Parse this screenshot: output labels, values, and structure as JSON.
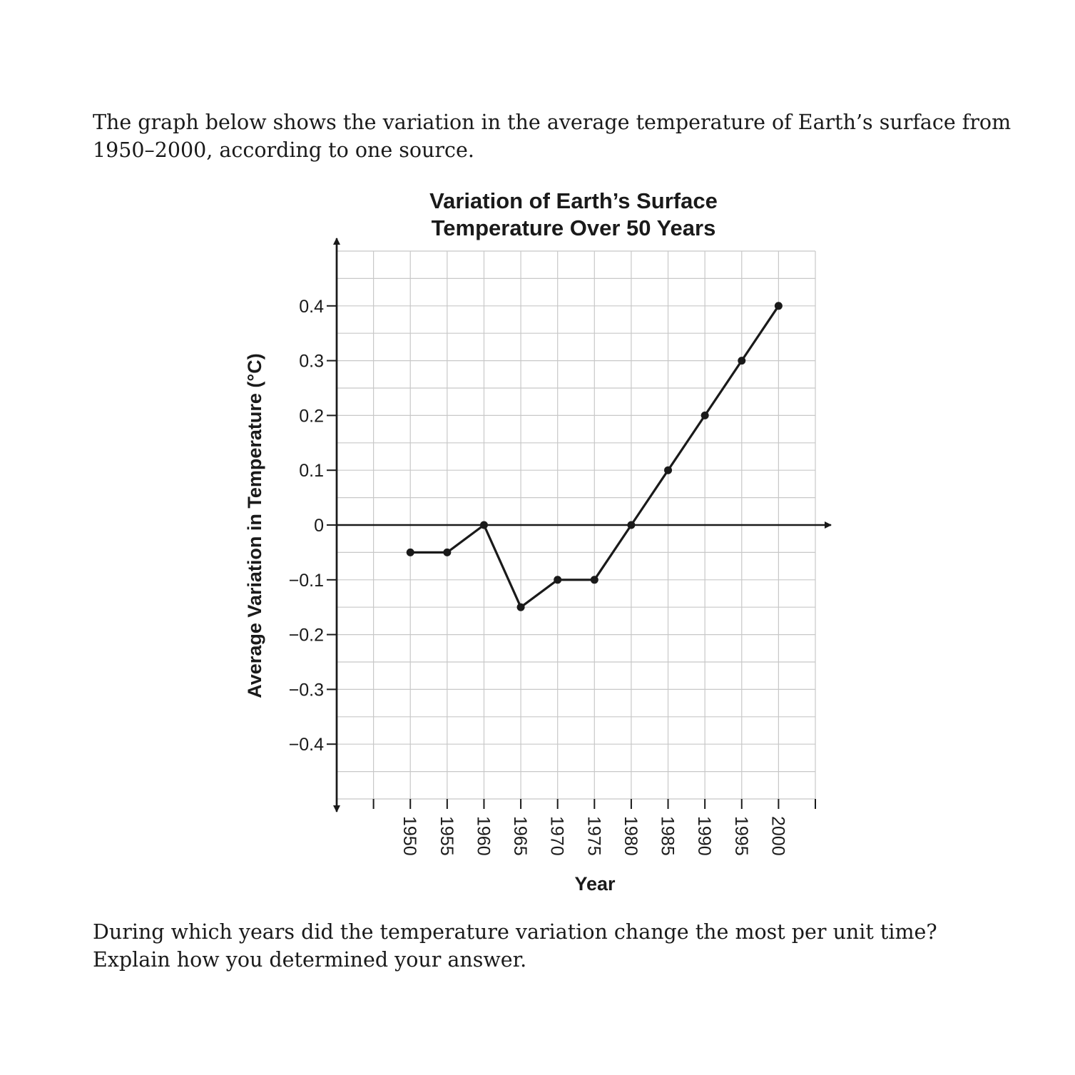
{
  "intro_text": "The graph below shows the variation in the average temperature of Earth’s surface from 1950–2000, according to one source.",
  "question_text": "During which years did the temperature variation change the most per unit time? Explain how you determined your answer.",
  "colors": {
    "line": "#1a1a1a",
    "grid": "#c8c8c8",
    "axis": "#1a1a1a"
  },
  "chart_data": {
    "type": "line",
    "title": "Variation of Earth’s Surface Temperature Over 50 Years",
    "title_lines": [
      "Variation of Earth’s Surface",
      "Temperature Over 50 Years"
    ],
    "xlabel": "Year",
    "ylabel": "Average Variation in Temperature (°C)",
    "x": [
      1950,
      1955,
      1960,
      1965,
      1970,
      1975,
      1980,
      1985,
      1990,
      1995,
      2000
    ],
    "y": [
      -0.05,
      -0.05,
      0,
      -0.15,
      -0.1,
      -0.1,
      0,
      0.1,
      0.2,
      0.3,
      0.4
    ],
    "x_ticks": [
      1950,
      1955,
      1960,
      1965,
      1970,
      1975,
      1980,
      1985,
      1990,
      1995,
      2000
    ],
    "y_ticks": [
      0.4,
      0.3,
      0.2,
      0.1,
      0,
      -0.1,
      -0.2,
      -0.3,
      -0.4
    ],
    "y_tick_labels": [
      "0.4",
      "0.3",
      "0.2",
      "0.1",
      "0",
      "−0.1",
      "−0.2",
      "−0.3",
      "−0.4"
    ],
    "xlim": [
      1940,
      2005
    ],
    "ylim": [
      -0.5,
      0.5
    ],
    "grid": true,
    "markers": true,
    "legend": "none"
  }
}
